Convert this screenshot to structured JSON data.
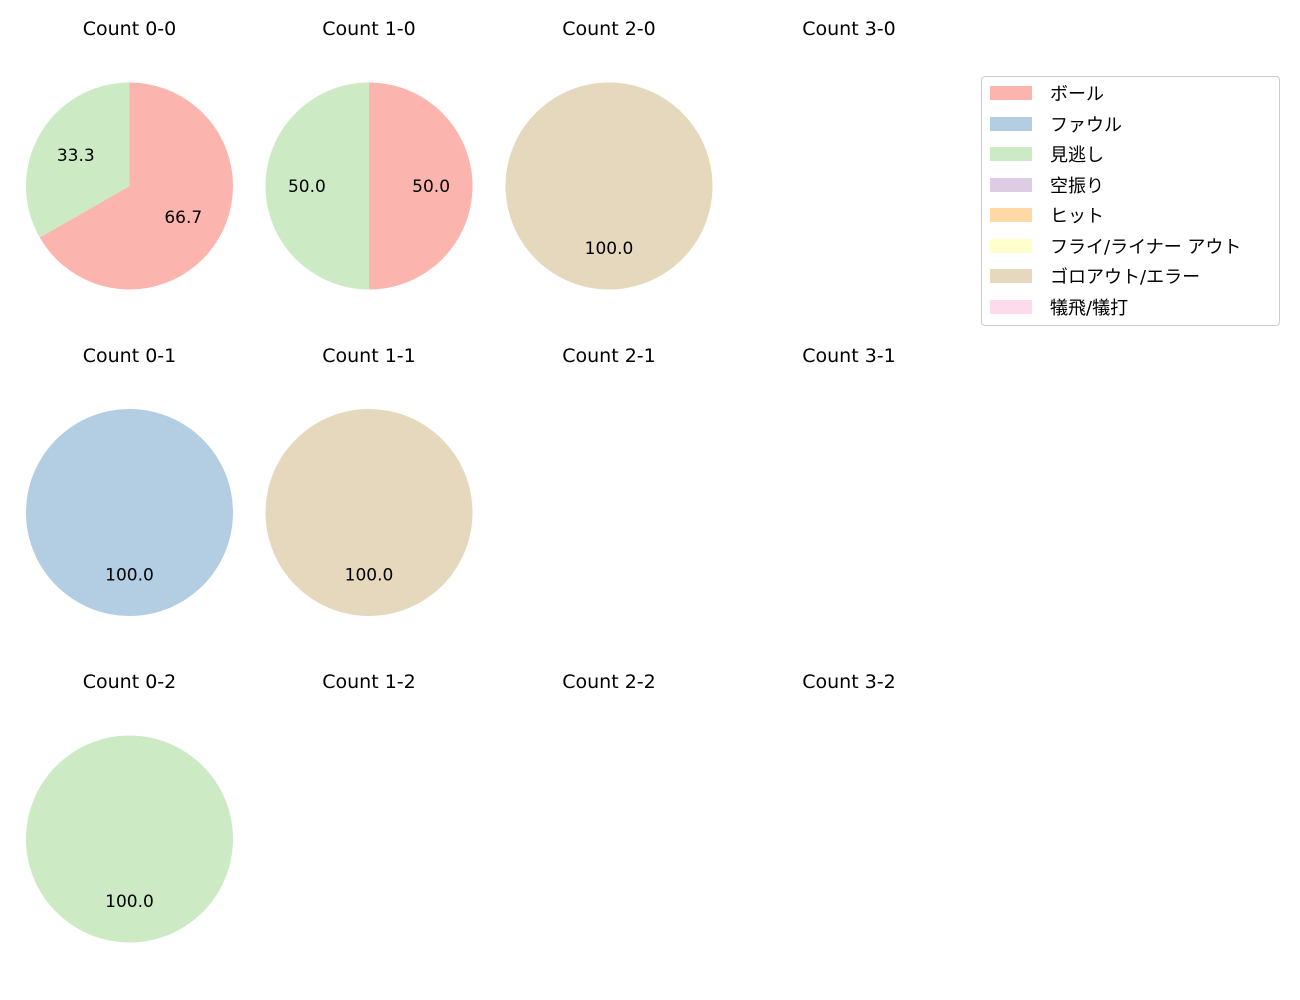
{
  "chart_data": {
    "type": "pie",
    "legend": {
      "position": "upper right",
      "entries": [
        {
          "label": "ボール",
          "color": "#fbb4ae"
        },
        {
          "label": "ファウル",
          "color": "#b3cde3"
        },
        {
          "label": "見逃し",
          "color": "#ccebc5"
        },
        {
          "label": "空振り",
          "color": "#decbe4"
        },
        {
          "label": "ヒット",
          "color": "#fed9a6"
        },
        {
          "label": "フライ/ライナー アウト",
          "color": "#ffffcc"
        },
        {
          "label": "ゴロアウト/エラー",
          "color": "#e5d8bd"
        },
        {
          "label": "犠飛/犠打",
          "color": "#fddaec"
        }
      ]
    },
    "subplots": [
      {
        "title": "Count 0-0",
        "row": 0,
        "col": 0,
        "slices": [
          {
            "label": "ボール",
            "value": 66.7
          },
          {
            "label": "見逃し",
            "value": 33.3
          }
        ]
      },
      {
        "title": "Count 1-0",
        "row": 0,
        "col": 1,
        "slices": [
          {
            "label": "ボール",
            "value": 50.0
          },
          {
            "label": "見逃し",
            "value": 50.0
          }
        ]
      },
      {
        "title": "Count 2-0",
        "row": 0,
        "col": 2,
        "slices": [
          {
            "label": "ゴロアウト/エラー",
            "value": 100.0
          }
        ]
      },
      {
        "title": "Count 3-0",
        "row": 0,
        "col": 3,
        "slices": []
      },
      {
        "title": "Count 0-1",
        "row": 1,
        "col": 0,
        "slices": [
          {
            "label": "ファウル",
            "value": 100.0
          }
        ]
      },
      {
        "title": "Count 1-1",
        "row": 1,
        "col": 1,
        "slices": [
          {
            "label": "ゴロアウト/エラー",
            "value": 100.0
          }
        ]
      },
      {
        "title": "Count 2-1",
        "row": 1,
        "col": 2,
        "slices": []
      },
      {
        "title": "Count 3-1",
        "row": 1,
        "col": 3,
        "slices": []
      },
      {
        "title": "Count 0-2",
        "row": 2,
        "col": 0,
        "slices": [
          {
            "label": "見逃し",
            "value": 100.0
          }
        ]
      },
      {
        "title": "Count 1-2",
        "row": 2,
        "col": 1,
        "slices": []
      },
      {
        "title": "Count 2-2",
        "row": 2,
        "col": 2,
        "slices": []
      },
      {
        "title": "Count 3-2",
        "row": 2,
        "col": 3,
        "slices": []
      }
    ],
    "start_angle": 90,
    "counterclock": false,
    "value_format": "%.1f"
  }
}
